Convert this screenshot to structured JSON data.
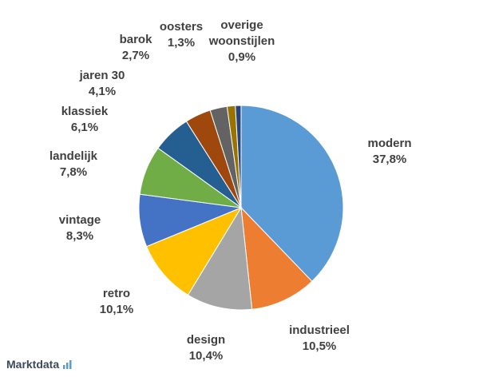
{
  "chart_data": {
    "type": "pie",
    "categories": [
      "modern",
      "industrieel",
      "design",
      "retro",
      "vintage",
      "landelijk",
      "klassiek",
      "jaren 30",
      "barok",
      "oosters",
      "overige woonstijlen"
    ],
    "values": [
      37.8,
      10.5,
      10.4,
      10.1,
      8.3,
      7.8,
      6.1,
      4.1,
      2.7,
      1.3,
      0.9
    ],
    "value_labels": [
      "37,8%",
      "10,5%",
      "10,4%",
      "10,1%",
      "8,3%",
      "7,8%",
      "6,1%",
      "4,1%",
      "2,7%",
      "1,3%",
      "0,9%"
    ],
    "colors": [
      "#5b9bd5",
      "#ed7d31",
      "#a5a5a5",
      "#ffc000",
      "#4472c4",
      "#70ad47",
      "#255e91",
      "#9e480e",
      "#636363",
      "#997300",
      "#264478"
    ],
    "source": "Marktdata"
  }
}
